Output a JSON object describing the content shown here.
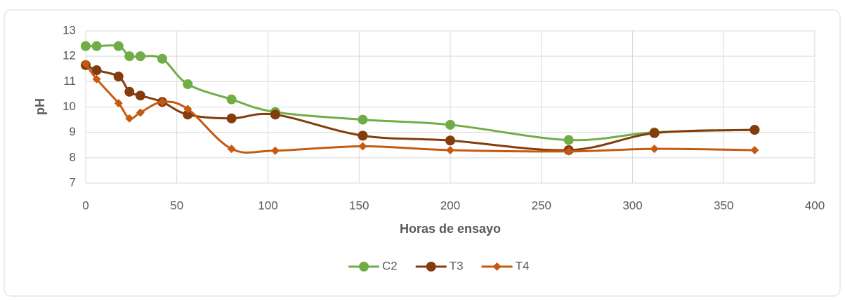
{
  "chart_data": {
    "type": "line",
    "x_label": "Horas de ensayo",
    "y_label": "pH",
    "x": [
      0,
      6,
      18,
      24,
      30,
      42,
      56,
      80,
      104,
      152,
      200,
      265,
      312,
      367
    ],
    "series": [
      {
        "name": "C2",
        "color": "#70ad47",
        "marker": "circle",
        "values": [
          12.4,
          12.4,
          12.4,
          12,
          12,
          11.9,
          10.9,
          10.3,
          9.8,
          9.5,
          9.3,
          8.7,
          9.0,
          9.1
        ]
      },
      {
        "name": "T3",
        "color": "#843c0c",
        "marker": "circle",
        "values": [
          11.65,
          11.45,
          11.2,
          10.6,
          10.45,
          10.2,
          9.7,
          9.55,
          9.7,
          8.87,
          8.68,
          8.3,
          8.97,
          9.1
        ]
      },
      {
        "name": "T4",
        "color": "#c55a11",
        "marker": "diamond",
        "values": [
          11.7,
          11.1,
          10.15,
          9.55,
          9.78,
          10.2,
          9.92,
          8.35,
          8.28,
          8.45,
          8.3,
          8.25,
          8.35,
          8.3
        ]
      }
    ],
    "xlim": [
      0,
      400
    ],
    "xticks": [
      0,
      50,
      100,
      150,
      200,
      250,
      300,
      350,
      400
    ],
    "ylim": [
      7,
      13
    ],
    "yticks": [
      7,
      8,
      9,
      10,
      11,
      12,
      13
    ],
    "grid": true,
    "smooth": true,
    "legend": "bottom"
  }
}
